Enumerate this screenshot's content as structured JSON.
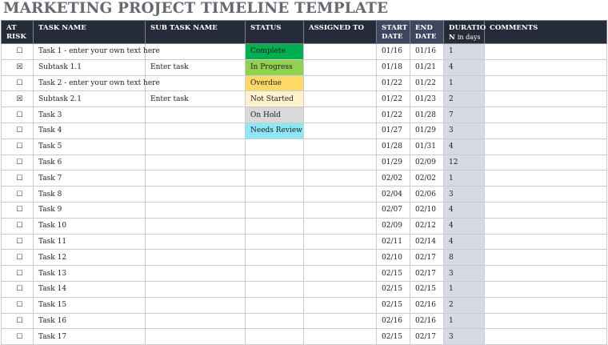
{
  "title": "MARKETING PROJECT TIMELINE TEMPLATE",
  "headers": {
    "at_risk": "AT RISK",
    "task_name": "TASK NAME",
    "sub_task_name": "SUB TASK NAME",
    "status": "STATUS",
    "assigned_to": "ASSIGNED TO",
    "start_date": "START DATE",
    "end_date": "END DATE",
    "duration": "DURATIO N",
    "duration_unit": "in days",
    "comments": "COMMENTS"
  },
  "status_colors": {
    "Complete": "#00b050",
    "In Progress": "#92d050",
    "Overdue": "#ffd966",
    "Not Started": "#fff2cc",
    "On Hold": "#d9d9d9",
    "Needs Review": "#8ee7f6"
  },
  "rows": [
    {
      "at_risk": "☐",
      "task": "Task 1 - enter your own text here",
      "sub": "",
      "status": "Complete",
      "assigned": "",
      "start": "01/16",
      "end": "01/16",
      "duration": "1",
      "comments": ""
    },
    {
      "at_risk": "☒",
      "task": "Subtask 1.1",
      "sub": "Enter task",
      "status": "In Progress",
      "assigned": "",
      "start": "01/18",
      "end": "01/21",
      "duration": "4",
      "comments": ""
    },
    {
      "at_risk": "☐",
      "task": "Task 2 - enter your own text here",
      "sub": "",
      "status": "Overdue",
      "assigned": "",
      "start": "01/22",
      "end": "01/22",
      "duration": "1",
      "comments": ""
    },
    {
      "at_risk": "☒",
      "task": "Subtask 2.1",
      "sub": "Enter task",
      "status": "Not Started",
      "assigned": "",
      "start": "01/22",
      "end": "01/23",
      "duration": "2",
      "comments": ""
    },
    {
      "at_risk": "☐",
      "task": "Task 3",
      "sub": "",
      "status": "On Hold",
      "assigned": "",
      "start": "01/22",
      "end": "01/28",
      "duration": "7",
      "comments": ""
    },
    {
      "at_risk": "☐",
      "task": "Task 4",
      "sub": "",
      "status": "Needs Review",
      "assigned": "",
      "start": "01/27",
      "end": "01/29",
      "duration": "3",
      "comments": ""
    },
    {
      "at_risk": "☐",
      "task": "Task 5",
      "sub": "",
      "status": "",
      "assigned": "",
      "start": "01/28",
      "end": "01/31",
      "duration": "4",
      "comments": ""
    },
    {
      "at_risk": "☐",
      "task": "Task 6",
      "sub": "",
      "status": "",
      "assigned": "",
      "start": "01/29",
      "end": "02/09",
      "duration": "12",
      "comments": ""
    },
    {
      "at_risk": "☐",
      "task": "Task 7",
      "sub": "",
      "status": "",
      "assigned": "",
      "start": "02/02",
      "end": "02/02",
      "duration": "1",
      "comments": ""
    },
    {
      "at_risk": "☐",
      "task": "Task 8",
      "sub": "",
      "status": "",
      "assigned": "",
      "start": "02/04",
      "end": "02/06",
      "duration": "3",
      "comments": ""
    },
    {
      "at_risk": "☐",
      "task": "Task 9",
      "sub": "",
      "status": "",
      "assigned": "",
      "start": "02/07",
      "end": "02/10",
      "duration": "4",
      "comments": ""
    },
    {
      "at_risk": "☐",
      "task": "Task 10",
      "sub": "",
      "status": "",
      "assigned": "",
      "start": "02/09",
      "end": "02/12",
      "duration": "4",
      "comments": ""
    },
    {
      "at_risk": "☐",
      "task": "Task 11",
      "sub": "",
      "status": "",
      "assigned": "",
      "start": "02/11",
      "end": "02/14",
      "duration": "4",
      "comments": ""
    },
    {
      "at_risk": "☐",
      "task": "Task 12",
      "sub": "",
      "status": "",
      "assigned": "",
      "start": "02/10",
      "end": "02/17",
      "duration": "8",
      "comments": ""
    },
    {
      "at_risk": "☐",
      "task": "Task 13",
      "sub": "",
      "status": "",
      "assigned": "",
      "start": "02/15",
      "end": "02/17",
      "duration": "3",
      "comments": ""
    },
    {
      "at_risk": "☐",
      "task": "Task 14",
      "sub": "",
      "status": "",
      "assigned": "",
      "start": "02/15",
      "end": "02/15",
      "duration": "1",
      "comments": ""
    },
    {
      "at_risk": "☐",
      "task": "Task 15",
      "sub": "",
      "status": "",
      "assigned": "",
      "start": "02/15",
      "end": "02/16",
      "duration": "2",
      "comments": ""
    },
    {
      "at_risk": "☐",
      "task": "Task 16",
      "sub": "",
      "status": "",
      "assigned": "",
      "start": "02/16",
      "end": "02/16",
      "duration": "1",
      "comments": ""
    },
    {
      "at_risk": "☐",
      "task": "Task 17",
      "sub": "",
      "status": "",
      "assigned": "",
      "start": "02/15",
      "end": "02/17",
      "duration": "3",
      "comments": ""
    }
  ]
}
